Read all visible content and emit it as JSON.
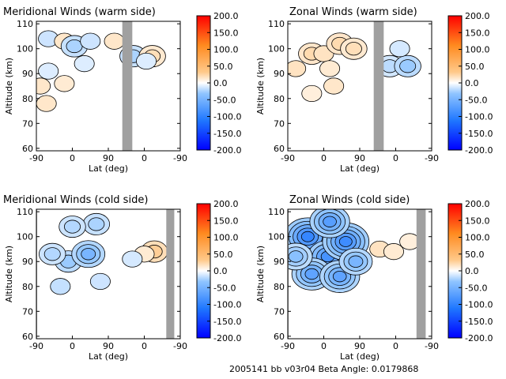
{
  "footer": "2005141 bb v03r04   Beta Angle: 0.0179868",
  "colorbar": {
    "ticks": [
      "200.0",
      "150.0",
      "100.0",
      "50.0",
      "0.0",
      "-50.0",
      "-100.0",
      "-150.0",
      "-200.0"
    ],
    "range": [
      -200,
      200
    ],
    "colormap": [
      "#0000ff",
      "#1f77ff",
      "#8fc4ff",
      "#ffffff",
      "#ffc98a",
      "#ff8a1f",
      "#ff0000"
    ]
  },
  "chart_data": [
    {
      "type": "heatmap",
      "title": "Meridional Winds (warm side)",
      "xlabel": "Lat (deg)",
      "ylabel": "Altitude (km)",
      "x_ticks": [
        "-90",
        "0",
        "90",
        "0",
        "-90"
      ],
      "y_ticks": [
        "60",
        "70",
        "80",
        "90",
        "100",
        "110"
      ],
      "ylim": [
        59,
        111
      ],
      "missing_data_color": "#a0a0a0",
      "gray_bands": [
        [
          125,
          150
        ]
      ],
      "blobs": [
        {
          "x": -60,
          "y": 104,
          "value": -30
        },
        {
          "x": -20,
          "y": 103,
          "value": 30
        },
        {
          "x": 5,
          "y": 101,
          "value": -50
        },
        {
          "x": 45,
          "y": 103,
          "value": -30
        },
        {
          "x": 105,
          "y": 103,
          "value": 30
        },
        {
          "x": -80,
          "y": 85,
          "value": 30
        },
        {
          "x": -60,
          "y": 91,
          "value": -20
        },
        {
          "x": -20,
          "y": 86,
          "value": 25
        },
        {
          "x": -65,
          "y": 78,
          "value": 30
        },
        {
          "x": 30,
          "y": 94,
          "value": -20
        },
        {
          "x": 152,
          "y": 97,
          "value": -50
        },
        {
          "x": 200,
          "y": 97,
          "value": 40
        },
        {
          "x": 185,
          "y": 95,
          "value": -20
        }
      ]
    },
    {
      "type": "heatmap",
      "title": "Zonal Winds (warm side)",
      "xlabel": "Lat (deg)",
      "ylabel": "Altitude (km)",
      "x_ticks": [
        "-90",
        "0",
        "90",
        "0",
        "-90"
      ],
      "y_ticks": [
        "60",
        "70",
        "80",
        "90",
        "100",
        "110"
      ],
      "ylim": [
        59,
        111
      ],
      "missing_data_color": "#a0a0a0",
      "gray_bands": [
        [
          125,
          150
        ]
      ],
      "blobs": [
        {
          "x": -30,
          "y": 98,
          "value": 45
        },
        {
          "x": -70,
          "y": 92,
          "value": 35
        },
        {
          "x": 0,
          "y": 98,
          "value": 35
        },
        {
          "x": 15,
          "y": 92,
          "value": 25
        },
        {
          "x": 40,
          "y": 102,
          "value": 45
        },
        {
          "x": 25,
          "y": 85,
          "value": 30
        },
        {
          "x": 75,
          "y": 100,
          "value": 40
        },
        {
          "x": -30,
          "y": 82,
          "value": 20
        },
        {
          "x": 165,
          "y": 93,
          "value": -40
        },
        {
          "x": 210,
          "y": 93,
          "value": -60
        },
        {
          "x": 190,
          "y": 100,
          "value": -25
        }
      ]
    },
    {
      "type": "heatmap",
      "title": "Meridional Winds (cold side)",
      "xlabel": "Lat (deg)",
      "ylabel": "Altitude (km)",
      "x_ticks": [
        "-90",
        "0",
        "90",
        "0",
        "-90"
      ],
      "y_ticks": [
        "60",
        "70",
        "80",
        "90",
        "100",
        "110"
      ],
      "ylim": [
        59,
        111
      ],
      "missing_data_color": "#a0a0a0",
      "gray_bands": [
        [
          -95,
          -88
        ],
        [
          235,
          255
        ]
      ],
      "blobs": [
        {
          "x": -10,
          "y": 90,
          "value": -60
        },
        {
          "x": 40,
          "y": 93,
          "value": -80
        },
        {
          "x": -50,
          "y": 93,
          "value": -45
        },
        {
          "x": 60,
          "y": 105,
          "value": -50
        },
        {
          "x": 0,
          "y": 104,
          "value": -45
        },
        {
          "x": -30,
          "y": 80,
          "value": -35
        },
        {
          "x": 70,
          "y": 82,
          "value": -30
        },
        {
          "x": 205,
          "y": 94,
          "value": 60
        },
        {
          "x": 180,
          "y": 93,
          "value": 25
        },
        {
          "x": 150,
          "y": 91,
          "value": -25
        }
      ]
    },
    {
      "type": "heatmap",
      "title": "Zonal Winds (cold side)",
      "xlabel": "Lat (deg)",
      "ylabel": "Altitude (km)",
      "x_ticks": [
        "-90",
        "0",
        "90",
        "0",
        "-90"
      ],
      "y_ticks": [
        "60",
        "70",
        "80",
        "90",
        "100",
        "110"
      ],
      "ylim": [
        59,
        111
      ],
      "missing_data_color": "#a0a0a0",
      "gray_bands": [
        [
          -100,
          -88
        ],
        [
          232,
          255
        ]
      ],
      "blobs": [
        {
          "x": -40,
          "y": 100,
          "value": -120
        },
        {
          "x": 10,
          "y": 92,
          "value": -110
        },
        {
          "x": 55,
          "y": 98,
          "value": -115
        },
        {
          "x": -30,
          "y": 85,
          "value": -95
        },
        {
          "x": 40,
          "y": 84,
          "value": -95
        },
        {
          "x": 15,
          "y": 106,
          "value": -100
        },
        {
          "x": -70,
          "y": 92,
          "value": -70
        },
        {
          "x": 80,
          "y": 90,
          "value": -80
        },
        {
          "x": 140,
          "y": 95,
          "value": 35
        },
        {
          "x": 175,
          "y": 94,
          "value": 25
        },
        {
          "x": 215,
          "y": 98,
          "value": 20
        }
      ]
    }
  ]
}
